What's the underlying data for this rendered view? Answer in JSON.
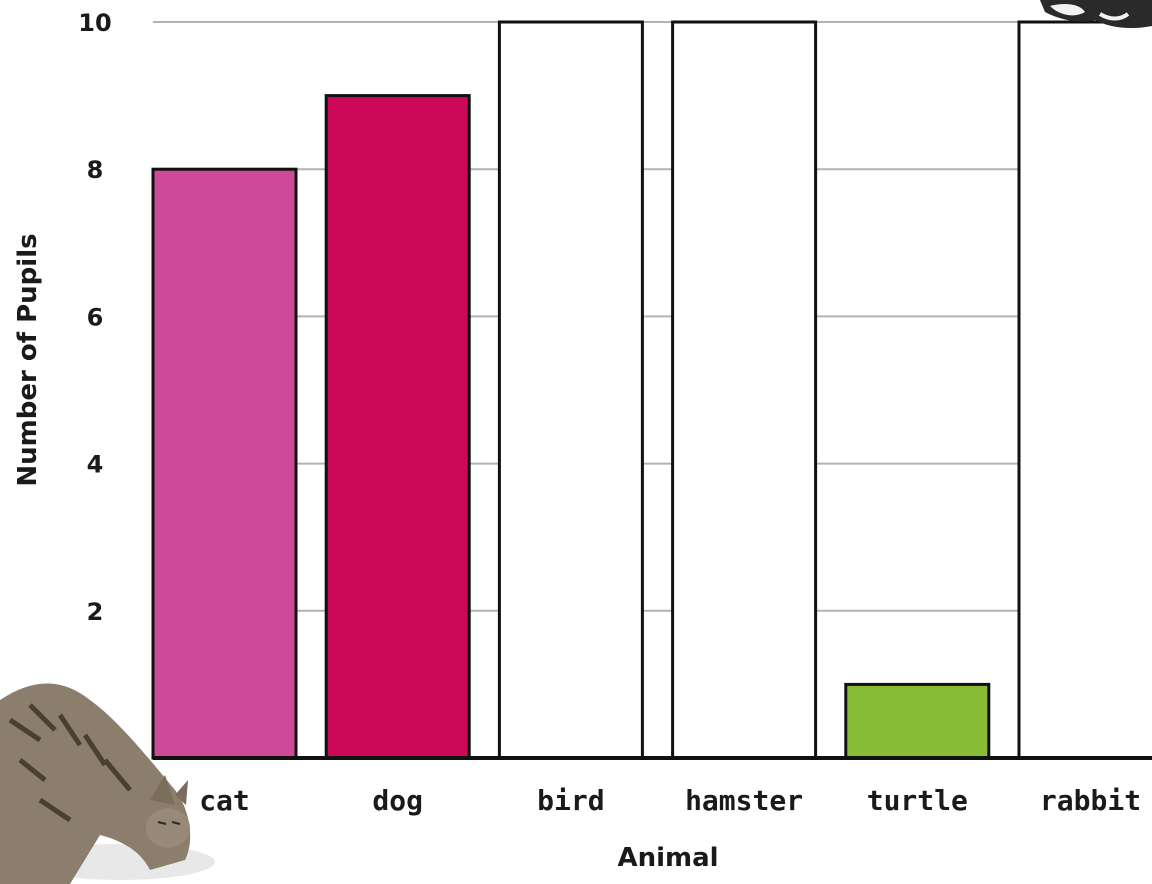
{
  "chart_data": {
    "type": "bar",
    "categories": [
      "cat",
      "dog",
      "bird",
      "hamster",
      "turtle",
      "rabbit"
    ],
    "values": [
      8,
      9,
      10,
      10,
      1,
      10
    ],
    "bar_colors": [
      "#cc4a97",
      "#cc0958",
      "#ffffff",
      "#ffffff",
      "#8abd37",
      "#ffffff"
    ],
    "xlabel": "Animal",
    "ylabel": "Number of Pupils",
    "ylim": [
      0,
      10
    ],
    "yticks": [
      2,
      4,
      6,
      8,
      10
    ],
    "grid": true,
    "grid_color": "#b3b3b3"
  },
  "decorations": {
    "bottom_left_image": "tabby-cat-illustration",
    "top_right_image": "black-white-cat-illustration"
  }
}
